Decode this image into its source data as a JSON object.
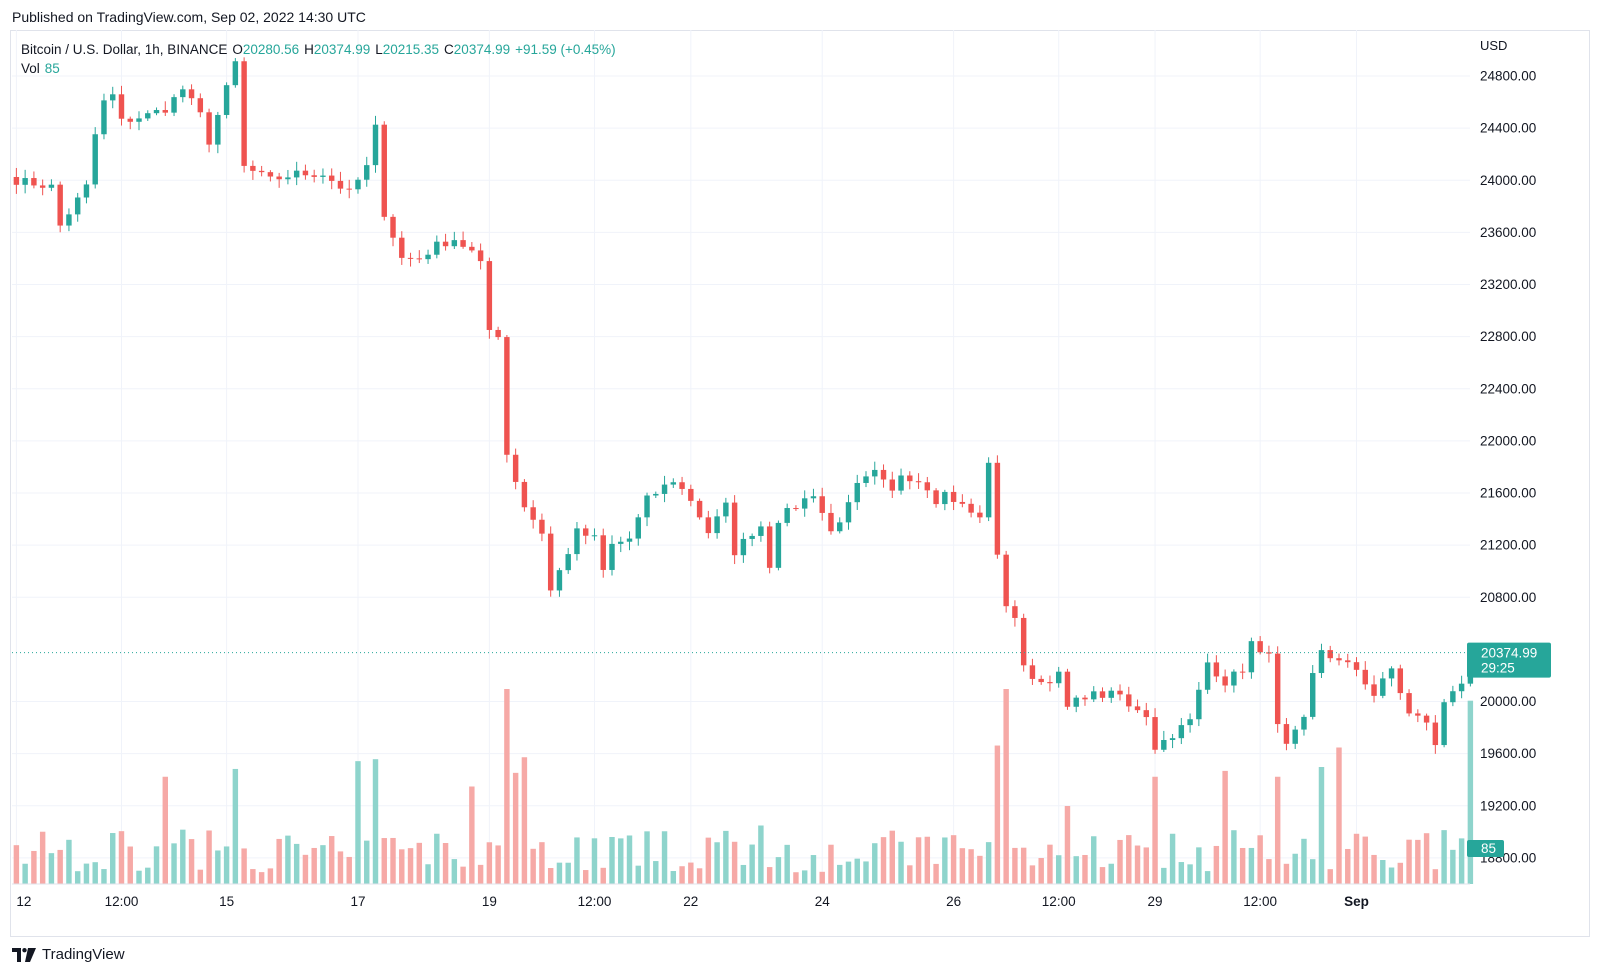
{
  "published": "Published on TradingView.com, Sep 02, 2022 14:30 UTC",
  "brand": "TradingView",
  "legend": {
    "symbol": "Bitcoin / U.S. Dollar, 1h, BINANCE",
    "o_label": "O",
    "o_value": "20280.56",
    "h_label": "H",
    "h_value": "20374.99",
    "l_label": "L",
    "l_value": "20215.35",
    "c_label": "C",
    "c_value": "20374.99",
    "change": "+91.59 (+0.45%)",
    "vol_label": "Vol",
    "vol_value": "85"
  },
  "colors": {
    "up": "#26a69a",
    "down": "#ef5350",
    "up_vol": "#8ed4cc",
    "down_vol": "#f6a9a6",
    "grid": "#f0f3fa",
    "text": "#131722"
  },
  "chart_data": {
    "type": "candlestick",
    "title": "Bitcoin / U.S. Dollar, 1h, BINANCE",
    "currency": "USD",
    "timeframe": "1h",
    "y_ticks": [
      "24800.00",
      "24400.00",
      "24000.00",
      "23600.00",
      "23200.00",
      "22800.00",
      "22400.00",
      "22000.00",
      "21600.00",
      "21200.00",
      "20800.00",
      "20000.00",
      "19600.00",
      "19200.00",
      "18800.00"
    ],
    "ylim": [
      18650,
      25000
    ],
    "x_ticks": [
      {
        "label": "12",
        "bar": 0
      },
      {
        "label": "12:00",
        "bar": 12
      },
      {
        "label": "15",
        "bar": 24
      },
      {
        "label": "17",
        "bar": 39
      },
      {
        "label": "19",
        "bar": 54
      },
      {
        "label": "12:00",
        "bar": 66
      },
      {
        "label": "22",
        "bar": 77
      },
      {
        "label": "24",
        "bar": 92
      },
      {
        "label": "26",
        "bar": 107
      },
      {
        "label": "12:00",
        "bar": 119
      },
      {
        "label": "29",
        "bar": 130
      },
      {
        "label": "12:00",
        "bar": 142
      },
      {
        "label": "Sep",
        "bar": 153,
        "bold": true
      }
    ],
    "bar_count": 166,
    "close_anchors": [
      [
        0,
        24000
      ],
      [
        4,
        23950
      ],
      [
        5,
        23650
      ],
      [
        8,
        23950
      ],
      [
        9,
        24350
      ],
      [
        10,
        24600
      ],
      [
        11,
        24650
      ],
      [
        12,
        24450
      ],
      [
        15,
        24500
      ],
      [
        17,
        24550
      ],
      [
        19,
        24700
      ],
      [
        21,
        24500
      ],
      [
        22,
        24300
      ],
      [
        24,
        24700
      ],
      [
        25,
        24900
      ],
      [
        26,
        24100
      ],
      [
        29,
        24000
      ],
      [
        32,
        24050
      ],
      [
        35,
        24050
      ],
      [
        38,
        23900
      ],
      [
        40,
        24100
      ],
      [
        41,
        24400
      ],
      [
        42,
        23750
      ],
      [
        44,
        23400
      ],
      [
        46,
        23400
      ],
      [
        48,
        23500
      ],
      [
        50,
        23550
      ],
      [
        52,
        23450
      ],
      [
        53,
        23350
      ],
      [
        54,
        22850
      ],
      [
        55,
        22820
      ],
      [
        56,
        21900
      ],
      [
        58,
        21500
      ],
      [
        60,
        21300
      ],
      [
        61,
        20850
      ],
      [
        62,
        21000
      ],
      [
        64,
        21300
      ],
      [
        66,
        21250
      ],
      [
        67,
        21000
      ],
      [
        68,
        21200
      ],
      [
        70,
        21250
      ],
      [
        72,
        21550
      ],
      [
        74,
        21650
      ],
      [
        75,
        21700
      ],
      [
        77,
        21550
      ],
      [
        79,
        21300
      ],
      [
        81,
        21500
      ],
      [
        82,
        21150
      ],
      [
        84,
        21300
      ],
      [
        85,
        21350
      ],
      [
        86,
        21050
      ],
      [
        87,
        21400
      ],
      [
        89,
        21500
      ],
      [
        91,
        21600
      ],
      [
        93,
        21300
      ],
      [
        95,
        21500
      ],
      [
        96,
        21650
      ],
      [
        98,
        21750
      ],
      [
        100,
        21600
      ],
      [
        101,
        21750
      ],
      [
        103,
        21700
      ],
      [
        104,
        21650
      ],
      [
        105,
        21550
      ],
      [
        106,
        21600
      ],
      [
        107,
        21550
      ],
      [
        108,
        21500
      ],
      [
        110,
        21400
      ],
      [
        111,
        21850
      ],
      [
        112,
        21100
      ],
      [
        113,
        20750
      ],
      [
        114,
        20650
      ],
      [
        115,
        20250
      ],
      [
        117,
        20150
      ],
      [
        119,
        20200
      ],
      [
        120,
        19950
      ],
      [
        122,
        20050
      ],
      [
        124,
        20050
      ],
      [
        126,
        20050
      ],
      [
        127,
        19950
      ],
      [
        128,
        19950
      ],
      [
        129,
        19900
      ],
      [
        130,
        19650
      ],
      [
        132,
        19750
      ],
      [
        134,
        19850
      ],
      [
        136,
        20300
      ],
      [
        138,
        20150
      ],
      [
        140,
        20250
      ],
      [
        141,
        20450
      ],
      [
        142,
        20350
      ],
      [
        143,
        20400
      ],
      [
        144,
        19800
      ],
      [
        145,
        19650
      ],
      [
        147,
        19850
      ],
      [
        148,
        20200
      ],
      [
        149,
        20400
      ],
      [
        151,
        20300
      ],
      [
        153,
        20250
      ],
      [
        155,
        20050
      ],
      [
        157,
        20250
      ],
      [
        159,
        19900
      ],
      [
        161,
        19850
      ],
      [
        162,
        19650
      ],
      [
        163,
        20000
      ],
      [
        164,
        20100
      ],
      [
        165,
        20150
      ],
      [
        166,
        20374.99
      ]
    ],
    "volume_spikes": [
      [
        17,
        55
      ],
      [
        25,
        59
      ],
      [
        39,
        63
      ],
      [
        41,
        64
      ],
      [
        52,
        50
      ],
      [
        56,
        100
      ],
      [
        57,
        57
      ],
      [
        58,
        65
      ],
      [
        85,
        30
      ],
      [
        112,
        71
      ],
      [
        113,
        100
      ],
      [
        120,
        40
      ],
      [
        130,
        55
      ],
      [
        138,
        58
      ],
      [
        144,
        55
      ],
      [
        149,
        60
      ],
      [
        151,
        70
      ],
      [
        166,
        94
      ]
    ],
    "last_price": "20374.99",
    "countdown": "29:25",
    "last_volume": "85"
  }
}
